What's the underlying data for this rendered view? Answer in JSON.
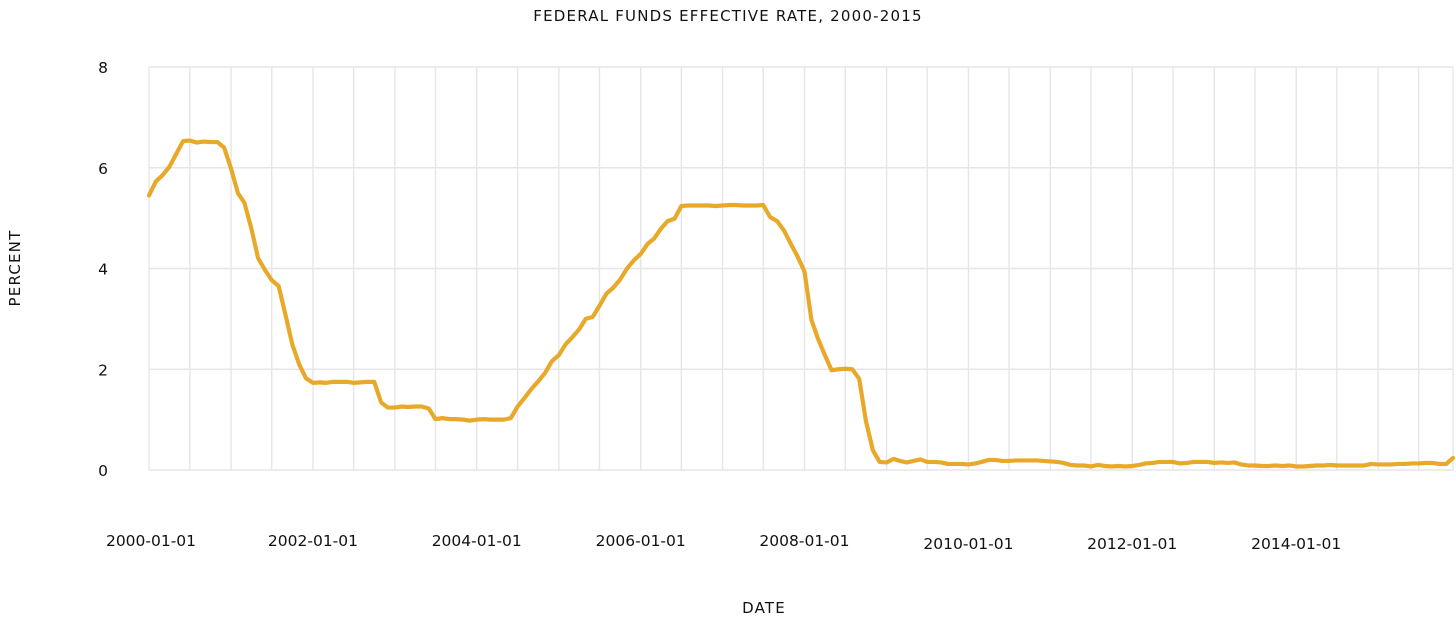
{
  "chart_data": {
    "type": "line",
    "title": "FEDERAL FUNDS EFFECTIVE RATE, 2000-2015",
    "xlabel": "DATE",
    "ylabel": "PERCENT",
    "xlim": [
      "2000-01-01",
      "2015-12-01"
    ],
    "ylim": [
      0,
      8
    ],
    "yticks": [
      0,
      2,
      4,
      6,
      8
    ],
    "xtick_labels": [
      "2000-01-01",
      "2002-01-01",
      "2004-01-01",
      "2006-01-01",
      "2008-01-01",
      "2010-01-01",
      "2012-01-01",
      "2014-01-01"
    ],
    "grid": true,
    "legend": "none",
    "series": [
      {
        "color": "#e8a92a",
        "x": [
          "2000-01-01",
          "2000-02-01",
          "2000-03-01",
          "2000-04-01",
          "2000-05-01",
          "2000-06-01",
          "2000-07-01",
          "2000-08-01",
          "2000-09-01",
          "2000-10-01",
          "2000-11-01",
          "2000-12-01",
          "2001-01-01",
          "2001-02-01",
          "2001-03-01",
          "2001-04-01",
          "2001-05-01",
          "2001-06-01",
          "2001-07-01",
          "2001-08-01",
          "2001-09-01",
          "2001-10-01",
          "2001-11-01",
          "2001-12-01",
          "2002-01-01",
          "2002-02-01",
          "2002-03-01",
          "2002-04-01",
          "2002-05-01",
          "2002-06-01",
          "2002-07-01",
          "2002-08-01",
          "2002-09-01",
          "2002-10-01",
          "2002-11-01",
          "2002-12-01",
          "2003-01-01",
          "2003-02-01",
          "2003-03-01",
          "2003-04-01",
          "2003-05-01",
          "2003-06-01",
          "2003-07-01",
          "2003-08-01",
          "2003-09-01",
          "2003-10-01",
          "2003-11-01",
          "2003-12-01",
          "2004-01-01",
          "2004-02-01",
          "2004-03-01",
          "2004-04-01",
          "2004-05-01",
          "2004-06-01",
          "2004-07-01",
          "2004-08-01",
          "2004-09-01",
          "2004-10-01",
          "2004-11-01",
          "2004-12-01",
          "2005-01-01",
          "2005-02-01",
          "2005-03-01",
          "2005-04-01",
          "2005-05-01",
          "2005-06-01",
          "2005-07-01",
          "2005-08-01",
          "2005-09-01",
          "2005-10-01",
          "2005-11-01",
          "2005-12-01",
          "2006-01-01",
          "2006-02-01",
          "2006-03-01",
          "2006-04-01",
          "2006-05-01",
          "2006-06-01",
          "2006-07-01",
          "2006-08-01",
          "2006-09-01",
          "2006-10-01",
          "2006-11-01",
          "2006-12-01",
          "2007-01-01",
          "2007-02-01",
          "2007-03-01",
          "2007-04-01",
          "2007-05-01",
          "2007-06-01",
          "2007-07-01",
          "2007-08-01",
          "2007-09-01",
          "2007-10-01",
          "2007-11-01",
          "2007-12-01",
          "2008-01-01",
          "2008-02-01",
          "2008-03-01",
          "2008-04-01",
          "2008-05-01",
          "2008-06-01",
          "2008-07-01",
          "2008-08-01",
          "2008-09-01",
          "2008-10-01",
          "2008-11-01",
          "2008-12-01",
          "2009-01-01",
          "2009-02-01",
          "2009-03-01",
          "2009-04-01",
          "2009-05-01",
          "2009-06-01",
          "2009-07-01",
          "2009-08-01",
          "2009-09-01",
          "2009-10-01",
          "2009-11-01",
          "2009-12-01",
          "2010-01-01",
          "2010-02-01",
          "2010-03-01",
          "2010-04-01",
          "2010-05-01",
          "2010-06-01",
          "2010-07-01",
          "2010-08-01",
          "2010-09-01",
          "2010-10-01",
          "2010-11-01",
          "2010-12-01",
          "2011-01-01",
          "2011-02-01",
          "2011-03-01",
          "2011-04-01",
          "2011-05-01",
          "2011-06-01",
          "2011-07-01",
          "2011-08-01",
          "2011-09-01",
          "2011-10-01",
          "2011-11-01",
          "2011-12-01",
          "2012-01-01",
          "2012-02-01",
          "2012-03-01",
          "2012-04-01",
          "2012-05-01",
          "2012-06-01",
          "2012-07-01",
          "2012-08-01",
          "2012-09-01",
          "2012-10-01",
          "2012-11-01",
          "2012-12-01",
          "2013-01-01",
          "2013-02-01",
          "2013-03-01",
          "2013-04-01",
          "2013-05-01",
          "2013-06-01",
          "2013-07-01",
          "2013-08-01",
          "2013-09-01",
          "2013-10-01",
          "2013-11-01",
          "2013-12-01",
          "2014-01-01",
          "2014-02-01",
          "2014-03-01",
          "2014-04-01",
          "2014-05-01",
          "2014-06-01",
          "2014-07-01",
          "2014-08-01",
          "2014-09-01",
          "2014-10-01",
          "2014-11-01",
          "2014-12-01",
          "2015-01-01",
          "2015-02-01",
          "2015-03-01",
          "2015-04-01",
          "2015-05-01",
          "2015-06-01",
          "2015-07-01",
          "2015-08-01",
          "2015-09-01",
          "2015-10-01",
          "2015-11-01",
          "2015-12-01"
        ],
        "y": [
          5.45,
          5.73,
          5.85,
          6.02,
          6.27,
          6.53,
          6.54,
          6.5,
          6.52,
          6.51,
          6.51,
          6.4,
          5.98,
          5.49,
          5.31,
          4.8,
          4.21,
          3.97,
          3.77,
          3.65,
          3.07,
          2.49,
          2.09,
          1.82,
          1.73,
          1.74,
          1.73,
          1.75,
          1.75,
          1.75,
          1.73,
          1.74,
          1.75,
          1.75,
          1.34,
          1.24,
          1.24,
          1.26,
          1.25,
          1.26,
          1.26,
          1.22,
          1.01,
          1.03,
          1.01,
          1.01,
          1.0,
          0.98,
          1.0,
          1.01,
          1.0,
          1.0,
          1.0,
          1.03,
          1.26,
          1.43,
          1.61,
          1.76,
          1.93,
          2.16,
          2.28,
          2.5,
          2.63,
          2.79,
          3.0,
          3.04,
          3.26,
          3.5,
          3.62,
          3.78,
          4.0,
          4.16,
          4.29,
          4.49,
          4.59,
          4.79,
          4.94,
          4.99,
          5.24,
          5.25,
          5.25,
          5.25,
          5.25,
          5.24,
          5.25,
          5.26,
          5.26,
          5.25,
          5.25,
          5.25,
          5.26,
          5.02,
          4.94,
          4.76,
          4.49,
          4.24,
          3.94,
          2.98,
          2.61,
          2.28,
          1.98,
          2.0,
          2.01,
          2.0,
          1.81,
          0.97,
          0.39,
          0.16,
          0.15,
          0.22,
          0.18,
          0.15,
          0.18,
          0.21,
          0.16,
          0.16,
          0.15,
          0.12,
          0.12,
          0.12,
          0.11,
          0.13,
          0.16,
          0.2,
          0.2,
          0.18,
          0.18,
          0.19,
          0.19,
          0.19,
          0.19,
          0.18,
          0.17,
          0.16,
          0.14,
          0.1,
          0.09,
          0.09,
          0.07,
          0.1,
          0.08,
          0.07,
          0.08,
          0.07,
          0.08,
          0.1,
          0.13,
          0.14,
          0.16,
          0.16,
          0.16,
          0.13,
          0.14,
          0.16,
          0.16,
          0.16,
          0.14,
          0.15,
          0.14,
          0.15,
          0.11,
          0.09,
          0.09,
          0.08,
          0.08,
          0.09,
          0.08,
          0.09,
          0.07,
          0.07,
          0.08,
          0.09,
          0.09,
          0.1,
          0.09,
          0.09,
          0.09,
          0.09,
          0.09,
          0.12,
          0.11,
          0.11,
          0.11,
          0.12,
          0.12,
          0.13,
          0.13,
          0.14,
          0.14,
          0.12,
          0.12,
          0.24
        ]
      }
    ]
  }
}
